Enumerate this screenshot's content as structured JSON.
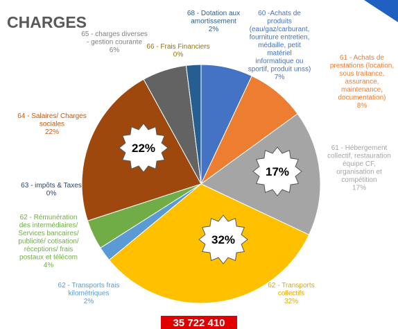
{
  "chart_data": {
    "type": "pie",
    "title": "CHARGES",
    "total": "35 722 410",
    "categories": [
      "60 -Achats de\nproduits\n(eau/gaz/carburant,\nfourniture entretien,\nmédaille, petit\nmatériel\ninformatique ou\nsportif, produit unss)",
      "61 -  Achats de\nprestations (location,\nsous traitance,\nassurance,\nmaintenance,\ndocumentation)",
      "61 - Hébergement\ncollectif, restauration\néquipe CF,\norganisation et\ncompétition",
      "62 - Transports\ncollectifs",
      "62 - Transports frais\nkilométriques",
      "62 - Rémunération\ndes intermédiaires/\nServices bancaires/\npublicité/ cotisation/\nréceptions/ frais\npostaux et télécom",
      "63 - impôts & Taxes",
      "64 - Salaires/ Charges\nsociales",
      "65 - charges diverses\n- gestion courante",
      "66 - Frais Financiers",
      "68 - Dotation aux\namortissement"
    ],
    "values": [
      7,
      8,
      17,
      32,
      2,
      4,
      0,
      22,
      6,
      0,
      2
    ],
    "value_labels": [
      "7%",
      "8%",
      "17%",
      "32%",
      "2%",
      "4%",
      "0%",
      "22%",
      "6%",
      "0%",
      "2%"
    ],
    "colors": [
      "#4472c4",
      "#ed7d31",
      "#a5a5a5",
      "#ffc000",
      "#5b9bd5",
      "#70ad47",
      "#264478",
      "#9e480e",
      "#636363",
      "#997300",
      "#255e91"
    ]
  }
}
